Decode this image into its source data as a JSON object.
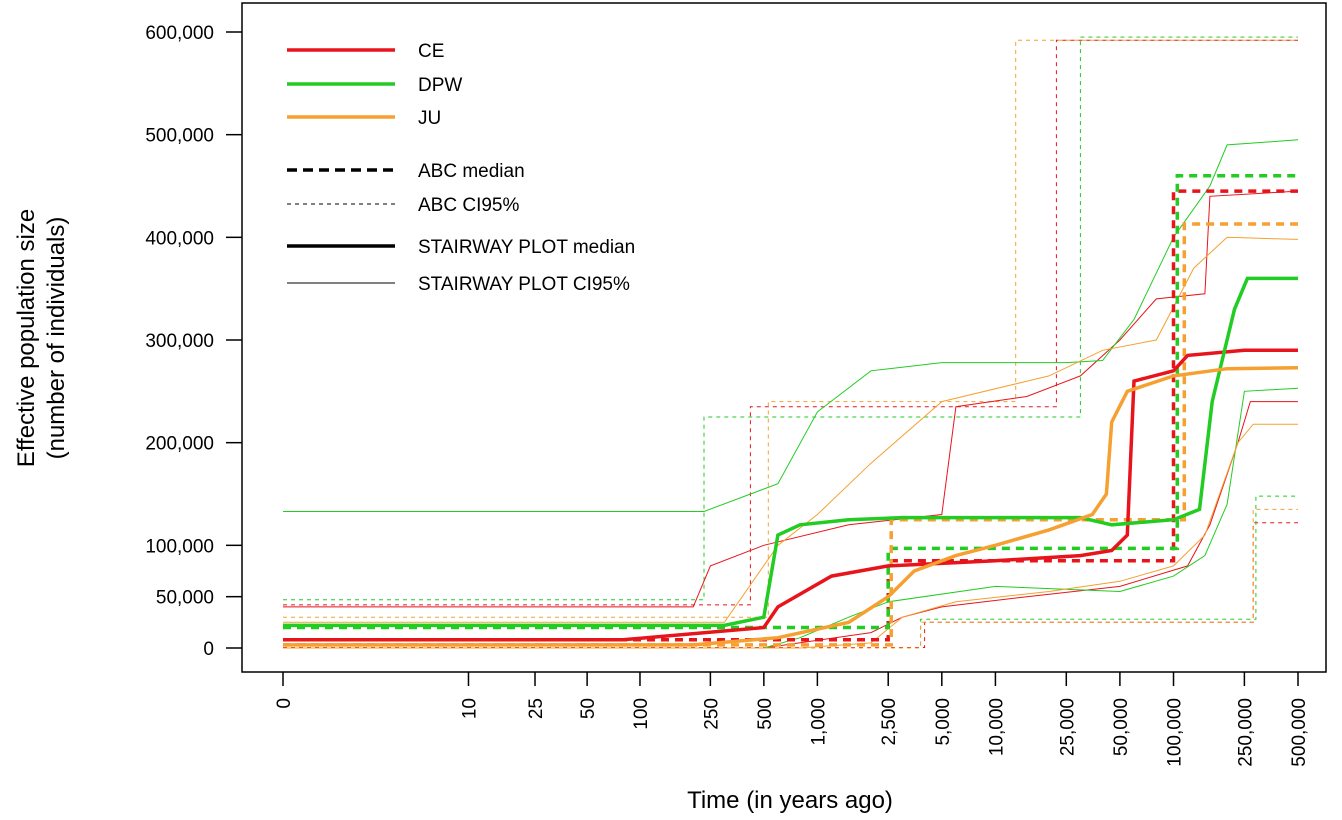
{
  "chart_data": {
    "type": "line",
    "x_label": "Time (in years ago)",
    "y_label": [
      "Effective population size",
      "(number of individuals)"
    ],
    "x_scale": "log1p",
    "xlim": [
      0,
      500000
    ],
    "ylim": [
      0,
      600000
    ],
    "xticks": [
      0,
      10,
      25,
      50,
      100,
      250,
      500,
      {
        "value": 1000,
        "label": "1,000"
      },
      {
        "value": 2500,
        "label": "2,500"
      },
      {
        "value": 5000,
        "label": "5,000"
      },
      {
        "value": 10000,
        "label": "10,000"
      },
      {
        "value": 25000,
        "label": "25,000"
      },
      {
        "value": 50000,
        "label": "50,000"
      },
      {
        "value": 100000,
        "label": "100,000"
      },
      {
        "value": 250000,
        "label": "250,000"
      },
      {
        "value": 500000,
        "label": "500,000"
      }
    ],
    "yticks": [
      0,
      {
        "value": 50000,
        "label": "50,000"
      },
      {
        "value": 100000,
        "label": "100,000"
      },
      {
        "value": 200000,
        "label": "200,000"
      },
      {
        "value": 300000,
        "label": "300,000"
      },
      {
        "value": 400000,
        "label": "400,000"
      },
      {
        "value": 500000,
        "label": "500,000"
      },
      {
        "value": 600000,
        "label": "600,000"
      }
    ],
    "legend": [
      {
        "label": "CE",
        "color": "#e8141c",
        "dash": false,
        "width": 3.5
      },
      {
        "label": "DPW",
        "color": "#22cc22",
        "dash": false,
        "width": 3.5
      },
      {
        "label": "JU",
        "color": "#f5a030",
        "dash": false,
        "width": 3.5
      },
      {
        "label": "ABC median",
        "color": "#000000",
        "dash": true,
        "width": 3.5
      },
      {
        "label": "ABC CI95%",
        "color": "#000000",
        "dash": true,
        "width": 1
      },
      {
        "label": "STAIRWAY PLOT median",
        "color": "#000000",
        "dash": false,
        "width": 3.5
      },
      {
        "label": "STAIRWAY PLOT CI95%",
        "color": "#000000",
        "dash": false,
        "width": 1
      }
    ],
    "series": [
      {
        "color": "#e8141c",
        "dash": true,
        "width": 1,
        "x": [
          0,
          420,
          420,
          22000,
          22000,
          500000
        ],
        "values": [
          42000,
          42000,
          235000,
          235000,
          592000,
          592000
        ]
      },
      {
        "color": "#22cc22",
        "dash": true,
        "width": 1,
        "x": [
          0,
          230,
          230,
          30000,
          30000,
          500000
        ],
        "values": [
          47000,
          47000,
          225000,
          225000,
          595000,
          595000
        ]
      },
      {
        "color": "#f5a030",
        "dash": true,
        "width": 1,
        "x": [
          0,
          530,
          530,
          13000,
          13000,
          500000
        ],
        "values": [
          30000,
          30000,
          240000,
          240000,
          592000,
          592000
        ]
      },
      {
        "color": "#e8141c",
        "dash": true,
        "width": 1,
        "x": [
          0,
          4000,
          4000,
          280000,
          280000,
          500000
        ],
        "values": [
          500,
          500,
          25000,
          25000,
          122000,
          122000
        ]
      },
      {
        "color": "#22cc22",
        "dash": true,
        "width": 1,
        "x": [
          0,
          3800,
          3800,
          290000,
          290000,
          500000
        ],
        "values": [
          0,
          0,
          28000,
          28000,
          148000,
          148000
        ]
      },
      {
        "color": "#f5a030",
        "dash": true,
        "width": 1,
        "x": [
          0,
          3800,
          3800,
          280000,
          280000,
          500000
        ],
        "values": [
          0,
          0,
          25000,
          25000,
          135000,
          135000
        ]
      },
      {
        "color": "#e8141c",
        "dash": false,
        "width": 1,
        "x": [
          0,
          200,
          250,
          500,
          1500,
          5000,
          6000,
          15000,
          30000,
          50000,
          80000,
          150000,
          160000,
          500000
        ],
        "values": [
          40000,
          40000,
          80000,
          100000,
          120000,
          130000,
          235000,
          245000,
          265000,
          300000,
          340000,
          345000,
          440000,
          445000
        ]
      },
      {
        "color": "#e8141c",
        "dash": false,
        "width": 1,
        "x": [
          0,
          500,
          2000,
          3000,
          5000,
          15000,
          50000,
          120000,
          160000,
          230000,
          270000,
          500000
        ],
        "values": [
          0,
          0,
          15000,
          30000,
          40000,
          50000,
          60000,
          80000,
          120000,
          200000,
          240000,
          240000
        ]
      },
      {
        "color": "#22cc22",
        "dash": false,
        "width": 1,
        "x": [
          0,
          230,
          600,
          1000,
          2000,
          5000,
          25000,
          40000,
          60000,
          100000,
          160000,
          200000,
          500000
        ],
        "values": [
          133000,
          133000,
          160000,
          230000,
          270000,
          278000,
          278000,
          280000,
          320000,
          400000,
          450000,
          490000,
          495000
        ]
      },
      {
        "color": "#22cc22",
        "dash": false,
        "width": 1,
        "x": [
          0,
          500,
          800,
          1500,
          2500,
          10000,
          50000,
          100000,
          150000,
          200000,
          250000,
          500000
        ],
        "values": [
          0,
          0,
          10000,
          30000,
          45000,
          60000,
          55000,
          70000,
          90000,
          140000,
          250000,
          253000
        ]
      },
      {
        "color": "#f5a030",
        "dash": false,
        "width": 1,
        "x": [
          0,
          300,
          600,
          1000,
          2000,
          5000,
          20000,
          40000,
          80000,
          130000,
          200000,
          500000
        ],
        "values": [
          25000,
          25000,
          100000,
          130000,
          180000,
          240000,
          265000,
          290000,
          300000,
          370000,
          400000,
          398000
        ]
      },
      {
        "color": "#f5a030",
        "dash": false,
        "width": 1,
        "x": [
          0,
          800,
          2000,
          3000,
          6000,
          20000,
          50000,
          100000,
          150000,
          230000,
          280000,
          500000
        ],
        "values": [
          0,
          0,
          5000,
          30000,
          45000,
          55000,
          65000,
          80000,
          110000,
          200000,
          218000,
          218000
        ]
      },
      {
        "color": "#e8141c",
        "dash": true,
        "width": 3.5,
        "x": [
          0,
          2500,
          2500,
          100000,
          100000,
          500000
        ],
        "values": [
          8000,
          8000,
          85000,
          85000,
          445000,
          445000
        ]
      },
      {
        "color": "#22cc22",
        "dash": true,
        "width": 3.5,
        "x": [
          0,
          2500,
          2500,
          105000,
          105000,
          500000
        ],
        "values": [
          20000,
          20000,
          97000,
          97000,
          460000,
          460000
        ]
      },
      {
        "color": "#f5a030",
        "dash": true,
        "width": 3.5,
        "x": [
          0,
          2600,
          2600,
          115000,
          115000,
          500000
        ],
        "values": [
          3000,
          3000,
          125000,
          125000,
          413000,
          413000
        ]
      },
      {
        "color": "#e8141c",
        "dash": false,
        "width": 3.5,
        "x": [
          0,
          80,
          500,
          600,
          1200,
          2500,
          10000,
          30000,
          45000,
          55000,
          60000,
          100000,
          120000,
          250000,
          500000
        ],
        "values": [
          8000,
          8000,
          20000,
          40000,
          70000,
          80000,
          85000,
          90000,
          95000,
          110000,
          260000,
          270000,
          285000,
          290000,
          290000
        ]
      },
      {
        "color": "#22cc22",
        "dash": false,
        "width": 3.5,
        "x": [
          0,
          300,
          500,
          600,
          800,
          1500,
          3000,
          30000,
          45000,
          100000,
          140000,
          165000,
          220000,
          260000,
          500000
        ],
        "values": [
          22000,
          22000,
          30000,
          110000,
          120000,
          125000,
          127000,
          127000,
          120000,
          125000,
          135000,
          240000,
          330000,
          360000,
          360000
        ]
      },
      {
        "color": "#f5a030",
        "dash": false,
        "width": 3.5,
        "x": [
          0,
          200,
          600,
          1500,
          2500,
          3500,
          6000,
          10000,
          20000,
          35000,
          42000,
          45000,
          55000,
          100000,
          200000,
          500000
        ],
        "values": [
          3000,
          3000,
          10000,
          25000,
          50000,
          75000,
          90000,
          100000,
          115000,
          130000,
          150000,
          220000,
          250000,
          265000,
          272000,
          273000
        ]
      }
    ]
  }
}
